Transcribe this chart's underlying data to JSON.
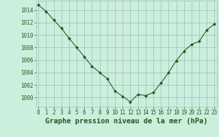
{
  "hours": [
    0,
    1,
    2,
    3,
    4,
    5,
    6,
    7,
    8,
    9,
    10,
    11,
    12,
    13,
    14,
    15,
    16,
    17,
    18,
    19,
    20,
    21,
    22,
    23
  ],
  "pressure": [
    1014.8,
    1013.8,
    1012.4,
    1011.1,
    1009.5,
    1008.0,
    1006.5,
    1005.0,
    1004.0,
    1003.0,
    1001.0,
    1000.2,
    999.3,
    1000.5,
    1000.3,
    1000.8,
    1002.3,
    1004.0,
    1005.9,
    1007.4,
    1008.5,
    1009.0,
    1010.8,
    1011.8
  ],
  "ylim": [
    998.5,
    1015.5
  ],
  "yticks": [
    1000,
    1002,
    1004,
    1006,
    1008,
    1010,
    1012,
    1014
  ],
  "xticks": [
    0,
    1,
    2,
    3,
    4,
    5,
    6,
    7,
    8,
    9,
    10,
    11,
    12,
    13,
    14,
    15,
    16,
    17,
    18,
    19,
    20,
    21,
    22,
    23
  ],
  "xlim": [
    -0.3,
    23.3
  ],
  "line_color": "#1a5c1a",
  "marker_color": "#1a5c1a",
  "bg_color": "#cceedd",
  "grid_color": "#99bbbb",
  "title": "Graphe pression niveau de la mer (hPa)",
  "title_color": "#1a5c1a",
  "tick_fontsize": 5.5,
  "title_fontsize": 7.5
}
